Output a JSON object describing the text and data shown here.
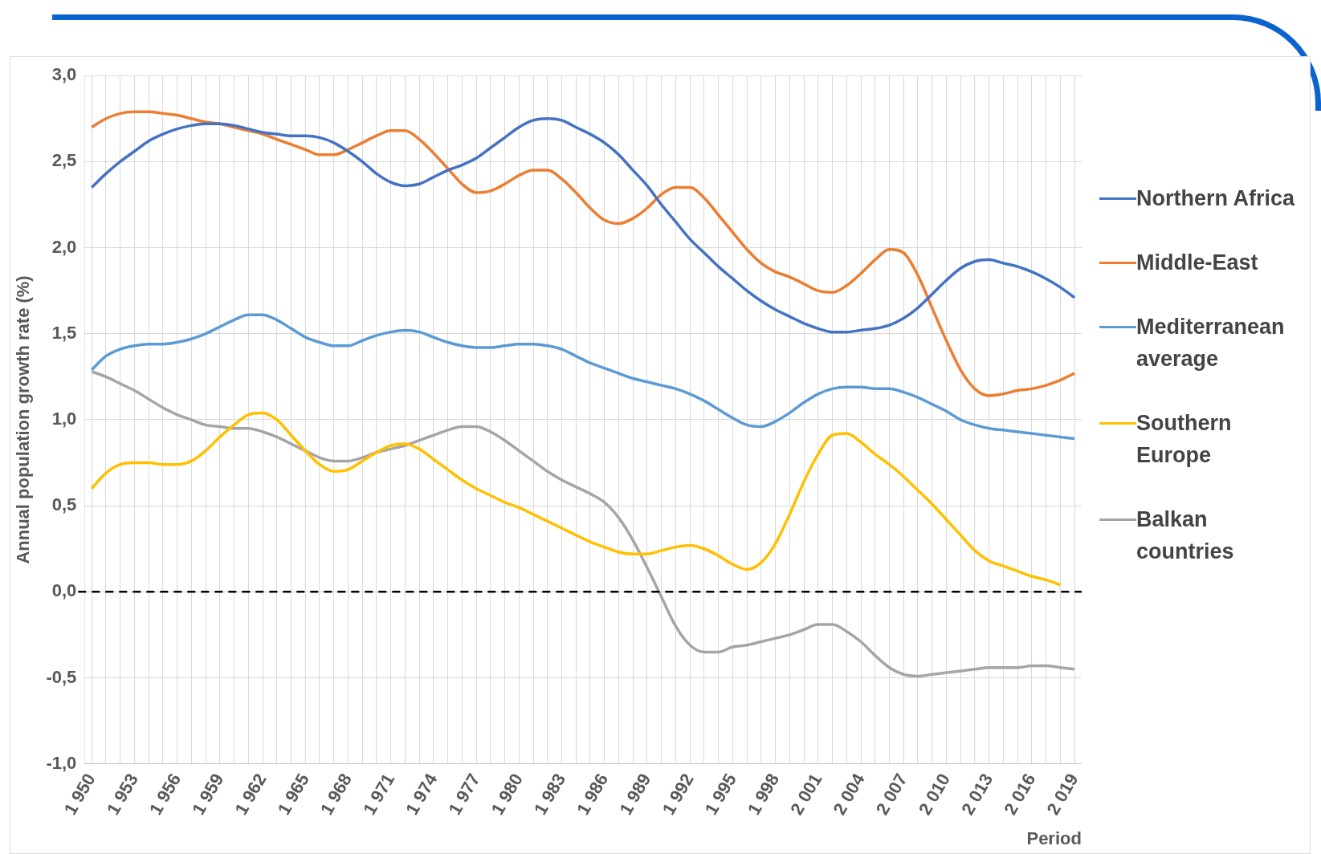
{
  "chart_data": {
    "type": "line",
    "xlabel": "Period",
    "ylabel": "Annual population growth rate (%)",
    "categories": [
      "1 950",
      null,
      null,
      "1 953",
      null,
      null,
      "1 956",
      null,
      null,
      "1 959",
      null,
      null,
      "1 962",
      null,
      null,
      "1 965",
      null,
      null,
      "1 968",
      null,
      null,
      "1 971",
      null,
      null,
      "1 974",
      null,
      null,
      "1 977",
      null,
      null,
      "1 980",
      null,
      null,
      "1 983",
      null,
      null,
      "1 986",
      null,
      null,
      "1 989",
      null,
      null,
      "1 992",
      null,
      null,
      "1 995",
      null,
      null,
      "1 998",
      null,
      null,
      "2 001",
      null,
      null,
      "2 004",
      null,
      null,
      "2 007",
      null,
      null,
      "2 010",
      null,
      null,
      "2 013",
      null,
      null,
      "2 016",
      null,
      null,
      "2 019"
    ],
    "series": [
      {
        "name": "Northern Africa",
        "color": "#4472c4",
        "values": [
          2.35,
          2.43,
          2.5,
          2.56,
          2.62,
          2.66,
          2.69,
          2.71,
          2.72,
          2.72,
          2.71,
          2.69,
          2.67,
          2.66,
          2.65,
          2.65,
          2.64,
          2.61,
          2.56,
          2.5,
          2.43,
          2.38,
          2.36,
          2.37,
          2.41,
          2.45,
          2.48,
          2.52,
          2.58,
          2.64,
          2.7,
          2.74,
          2.75,
          2.74,
          2.7,
          2.66,
          2.61,
          2.54,
          2.45,
          2.36,
          2.25,
          2.15,
          2.05,
          1.97,
          1.89,
          1.82,
          1.75,
          1.69,
          1.64,
          1.6,
          1.56,
          1.53,
          1.51,
          1.51,
          1.52,
          1.53,
          1.55,
          1.59,
          1.65,
          1.73,
          1.81,
          1.88,
          1.92,
          1.93,
          1.91,
          1.89,
          1.86,
          1.82,
          1.77,
          1.71
        ]
      },
      {
        "name": "Middle-East",
        "color": "#ed7d31",
        "values": [
          2.7,
          2.75,
          2.78,
          2.79,
          2.79,
          2.78,
          2.77,
          2.75,
          2.73,
          2.72,
          2.7,
          2.68,
          2.66,
          2.63,
          2.6,
          2.57,
          2.54,
          2.54,
          2.57,
          2.61,
          2.65,
          2.68,
          2.68,
          2.63,
          2.55,
          2.46,
          2.37,
          2.32,
          2.33,
          2.37,
          2.42,
          2.45,
          2.45,
          2.4,
          2.32,
          2.23,
          2.16,
          2.14,
          2.17,
          2.23,
          2.31,
          2.35,
          2.35,
          2.29,
          2.19,
          2.09,
          1.99,
          1.91,
          1.86,
          1.83,
          1.79,
          1.75,
          1.74,
          1.78,
          1.85,
          1.93,
          1.99,
          1.97,
          1.84,
          1.65,
          1.46,
          1.29,
          1.18,
          1.14,
          1.15,
          1.17,
          1.18,
          1.2,
          1.23,
          1.27
        ]
      },
      {
        "name": "Mediterranean average",
        "color": "#5b9bd5",
        "values": [
          1.29,
          1.37,
          1.41,
          1.43,
          1.44,
          1.44,
          1.45,
          1.47,
          1.5,
          1.54,
          1.58,
          1.61,
          1.61,
          1.58,
          1.53,
          1.48,
          1.45,
          1.43,
          1.43,
          1.46,
          1.49,
          1.51,
          1.52,
          1.51,
          1.48,
          1.45,
          1.43,
          1.42,
          1.42,
          1.43,
          1.44,
          1.44,
          1.43,
          1.41,
          1.37,
          1.33,
          1.3,
          1.27,
          1.24,
          1.22,
          1.2,
          1.18,
          1.15,
          1.11,
          1.06,
          1.01,
          0.97,
          0.96,
          0.99,
          1.04,
          1.1,
          1.15,
          1.18,
          1.19,
          1.19,
          1.18,
          1.18,
          1.16,
          1.13,
          1.09,
          1.05,
          1.0,
          0.97,
          0.95,
          0.94,
          0.93,
          0.92,
          0.91,
          0.9,
          0.89
        ]
      },
      {
        "name": "Southern Europe",
        "color": "#ffc000",
        "values": [
          0.6,
          0.69,
          0.74,
          0.75,
          0.75,
          0.74,
          0.74,
          0.76,
          0.82,
          0.9,
          0.97,
          1.03,
          1.04,
          1.0,
          0.91,
          0.82,
          0.74,
          0.7,
          0.71,
          0.76,
          0.81,
          0.85,
          0.86,
          0.83,
          0.77,
          0.71,
          0.65,
          0.6,
          0.56,
          0.52,
          0.49,
          0.45,
          0.41,
          0.37,
          0.33,
          0.29,
          0.26,
          0.23,
          0.22,
          0.22,
          0.24,
          0.26,
          0.27,
          0.25,
          0.21,
          0.16,
          0.13,
          0.17,
          0.28,
          0.45,
          0.64,
          0.8,
          0.91,
          0.92,
          0.87,
          0.8,
          0.74,
          0.67,
          0.59,
          0.51,
          0.42,
          0.33,
          0.24,
          0.18,
          0.15,
          0.12,
          0.09,
          0.07,
          0.04,
          null
        ]
      },
      {
        "name": "Balkan countries",
        "color": "#a5a5a5",
        "values": [
          1.28,
          1.25,
          1.21,
          1.17,
          1.12,
          1.07,
          1.03,
          1.0,
          0.97,
          0.96,
          0.95,
          0.95,
          0.93,
          0.9,
          0.86,
          0.82,
          0.78,
          0.76,
          0.76,
          0.78,
          0.81,
          0.83,
          0.85,
          0.88,
          0.91,
          0.94,
          0.96,
          0.96,
          0.93,
          0.88,
          0.82,
          0.76,
          0.7,
          0.65,
          0.61,
          0.57,
          0.52,
          0.43,
          0.3,
          0.14,
          -0.03,
          -0.2,
          -0.31,
          -0.35,
          -0.35,
          -0.32,
          -0.31,
          -0.29,
          -0.27,
          -0.25,
          -0.22,
          -0.19,
          -0.19,
          -0.23,
          -0.29,
          -0.37,
          -0.44,
          -0.48,
          -0.49,
          -0.48,
          -0.47,
          -0.46,
          -0.45,
          -0.44,
          -0.44,
          -0.44,
          -0.43,
          -0.43,
          -0.44,
          -0.45
        ]
      }
    ],
    "ylim": [
      -1,
      3
    ],
    "yticks": [
      {
        "value": -1,
        "label": "-1,0"
      },
      {
        "value": -0.5,
        "label": "-0,5"
      },
      {
        "value": 0,
        "label": "0,0"
      },
      {
        "value": 0.5,
        "label": "0,5"
      },
      {
        "value": 1,
        "label": "1,0"
      },
      {
        "value": 1.5,
        "label": "1,5"
      },
      {
        "value": 2,
        "label": "2,0"
      },
      {
        "value": 2.5,
        "label": "2,5"
      },
      {
        "value": 3,
        "label": "3,0"
      }
    ],
    "grid": true,
    "legend": "right",
    "ref_lines": [
      {
        "axis": "y",
        "value": 0,
        "label": null,
        "color": "#000000",
        "line_style": "dashed"
      }
    ]
  }
}
